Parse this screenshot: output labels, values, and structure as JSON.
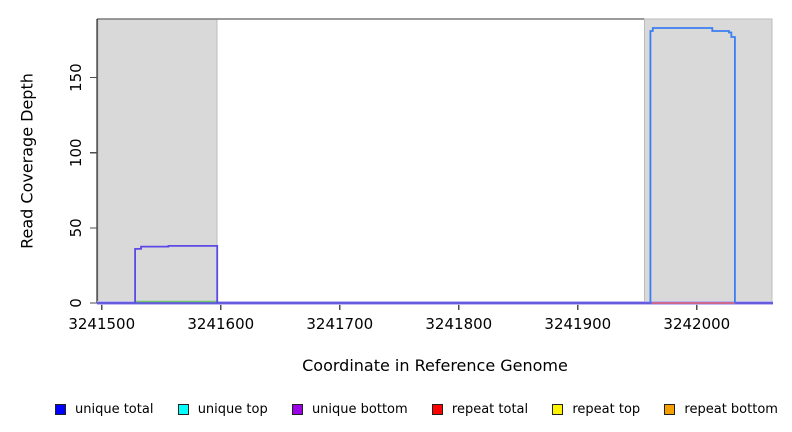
{
  "figure": {
    "background": "#ffffff"
  },
  "chart_data": {
    "type": "line",
    "subtype": "step-coverage",
    "title": "",
    "xlabel": "Coordinate in Reference Genome",
    "ylabel": "Read Coverage Depth",
    "xlim": [
      3241496,
      3242064
    ],
    "ylim": [
      0,
      189
    ],
    "x_ticks": [
      3241500,
      3241600,
      3241700,
      3241800,
      3241900,
      3242000
    ],
    "y_ticks": [
      0,
      50,
      100,
      150
    ],
    "grid": false,
    "legend_position": "bottom",
    "axis_color": "#000000",
    "tick_color": "#4d4d4d",
    "shaded_regions": [
      {
        "x0": 3241497,
        "x1": 3241597,
        "fill": "#d9d9d9",
        "stroke": "#bdbdbd"
      },
      {
        "x0": 3241956,
        "x1": 3242063,
        "fill": "#d9d9d9",
        "stroke": "#bdbdbd"
      }
    ],
    "top_border": {
      "x0": 3241496,
      "x1": 3241956,
      "color": "#7a7a7a"
    },
    "plot_lines": [
      {
        "name": "coverage-baseline-zero",
        "color": "#4a3fd9",
        "halo": "#b7b0ef",
        "width": 1.6,
        "points": [
          [
            3241496,
            0
          ],
          [
            3242064,
            0
          ]
        ]
      },
      {
        "name": "left-peak-zero-level-green",
        "color": "#72c472",
        "width": 1.4,
        "points": [
          [
            3241528,
            1
          ],
          [
            3241597,
            1
          ]
        ]
      },
      {
        "name": "left-coverage-peak",
        "color": "#5c49e6",
        "width": 1.8,
        "points": [
          [
            3241528,
            0
          ],
          [
            3241528,
            36
          ],
          [
            3241533,
            36
          ],
          [
            3241533,
            37.5
          ],
          [
            3241556,
            37.5
          ],
          [
            3241556,
            38
          ],
          [
            3241597,
            38
          ],
          [
            3241597,
            0
          ]
        ]
      },
      {
        "name": "right-peak-zero-level-red",
        "color": "#e4636e",
        "width": 1.4,
        "points": [
          [
            3241962,
            0
          ],
          [
            3242032,
            0
          ]
        ]
      },
      {
        "name": "right-coverage-peak",
        "color": "#3b7ef2",
        "width": 1.8,
        "points": [
          [
            3241961,
            0
          ],
          [
            3241961,
            181
          ],
          [
            3241963,
            181
          ],
          [
            3241963,
            183
          ],
          [
            3242013,
            183
          ],
          [
            3242013,
            181
          ],
          [
            3242027,
            181
          ],
          [
            3242027,
            180
          ],
          [
            3242029,
            180
          ],
          [
            3242029,
            177
          ],
          [
            3242032,
            177
          ],
          [
            3242032,
            0
          ]
        ]
      }
    ],
    "legend": [
      {
        "label": "unique total",
        "color": "#0000ff"
      },
      {
        "label": "unique top",
        "color": "#00ffff"
      },
      {
        "label": "unique bottom",
        "color": "#9c00e6"
      },
      {
        "label": "repeat total",
        "color": "#ff0000"
      },
      {
        "label": "repeat top",
        "color": "#fff200"
      },
      {
        "label": "repeat bottom",
        "color": "#f5a000"
      }
    ]
  }
}
